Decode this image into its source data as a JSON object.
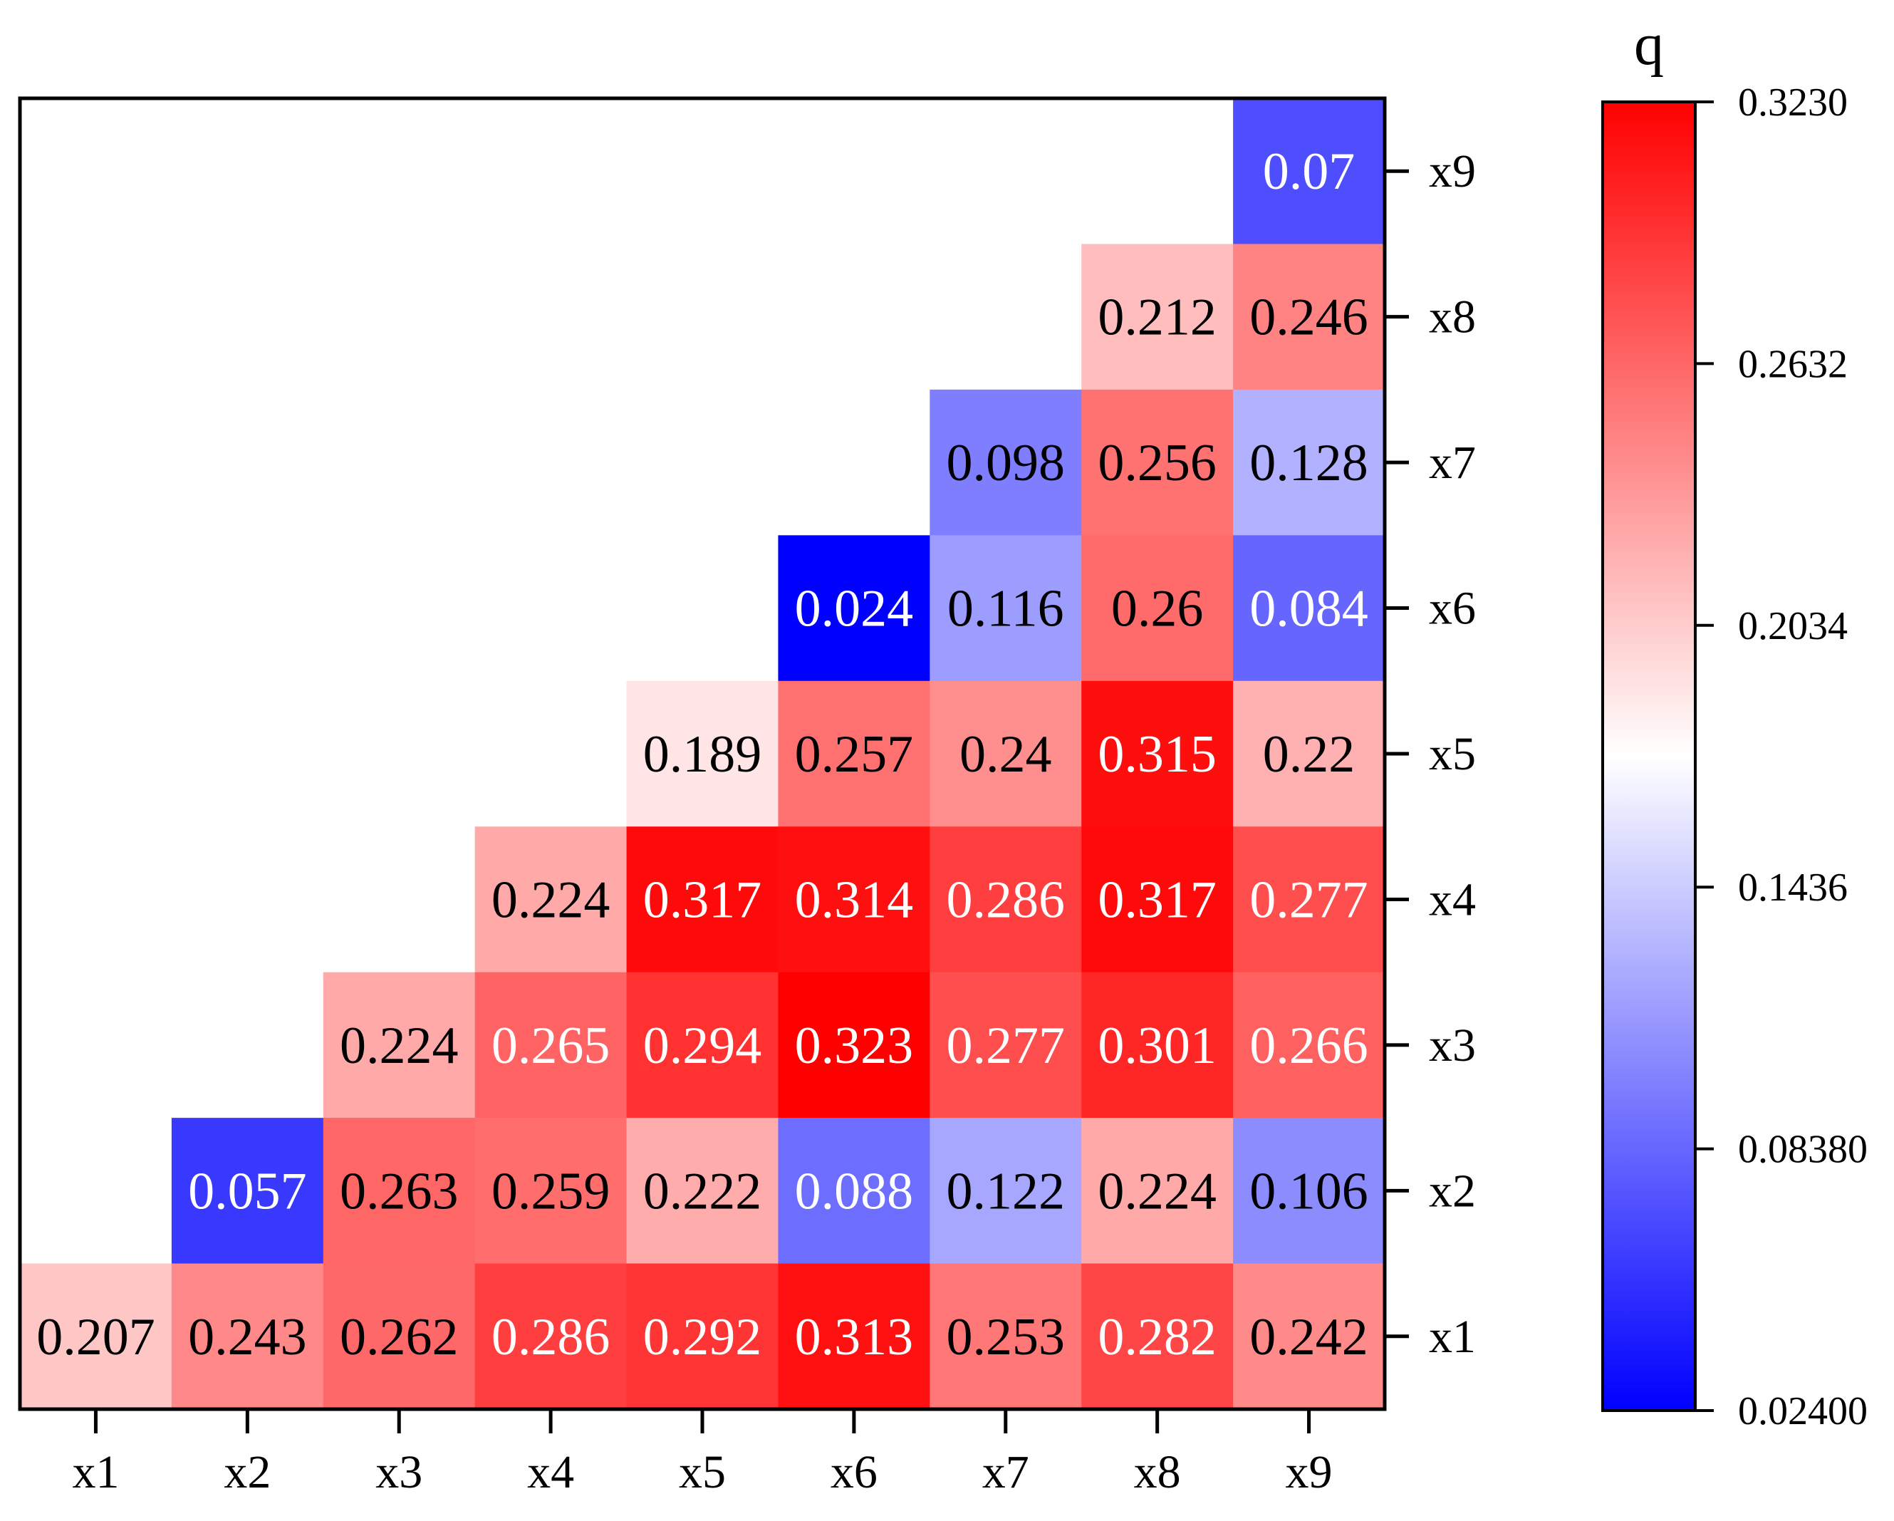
{
  "chart_data": {
    "type": "heatmap",
    "title": "",
    "x_categories": [
      "x1",
      "x2",
      "x3",
      "x4",
      "x5",
      "x6",
      "x7",
      "x8",
      "x9"
    ],
    "y_categories": [
      "x1",
      "x2",
      "x3",
      "x4",
      "x5",
      "x6",
      "x7",
      "x8",
      "x9"
    ],
    "rows": [
      {
        "y": "x9",
        "values": [
          null,
          null,
          null,
          null,
          null,
          null,
          null,
          null,
          0.07
        ]
      },
      {
        "y": "x8",
        "values": [
          null,
          null,
          null,
          null,
          null,
          null,
          null,
          0.212,
          0.246
        ]
      },
      {
        "y": "x7",
        "values": [
          null,
          null,
          null,
          null,
          null,
          null,
          0.098,
          0.256,
          0.128
        ]
      },
      {
        "y": "x6",
        "values": [
          null,
          null,
          null,
          null,
          null,
          0.024,
          0.116,
          0.26,
          0.084
        ]
      },
      {
        "y": "x5",
        "values": [
          null,
          null,
          null,
          null,
          0.189,
          0.257,
          0.24,
          0.315,
          0.22
        ]
      },
      {
        "y": "x4",
        "values": [
          null,
          null,
          null,
          0.224,
          0.317,
          0.314,
          0.286,
          0.317,
          0.277
        ]
      },
      {
        "y": "x3",
        "values": [
          null,
          null,
          0.224,
          0.265,
          0.294,
          0.323,
          0.277,
          0.301,
          0.266
        ]
      },
      {
        "y": "x2",
        "values": [
          null,
          0.057,
          0.263,
          0.259,
          0.222,
          0.088,
          0.122,
          0.224,
          0.106
        ]
      },
      {
        "y": "x1",
        "values": [
          0.207,
          0.243,
          0.262,
          0.286,
          0.292,
          0.313,
          0.253,
          0.282,
          0.242
        ]
      }
    ],
    "colorbar": {
      "title": "q",
      "min": 0.024,
      "max": 0.323,
      "tick_labels": [
        "0.02400",
        "0.08380",
        "0.1436",
        "0.2034",
        "0.2632",
        "0.3230"
      ],
      "tick_values": [
        0.024,
        0.0838,
        0.1436,
        0.2034,
        0.2632,
        0.323
      ],
      "colors": [
        "#0000ff",
        "#ffffff",
        "#ff0000"
      ]
    },
    "y_axis_position": "right",
    "x_axis_position": "bottom",
    "grid": false
  }
}
